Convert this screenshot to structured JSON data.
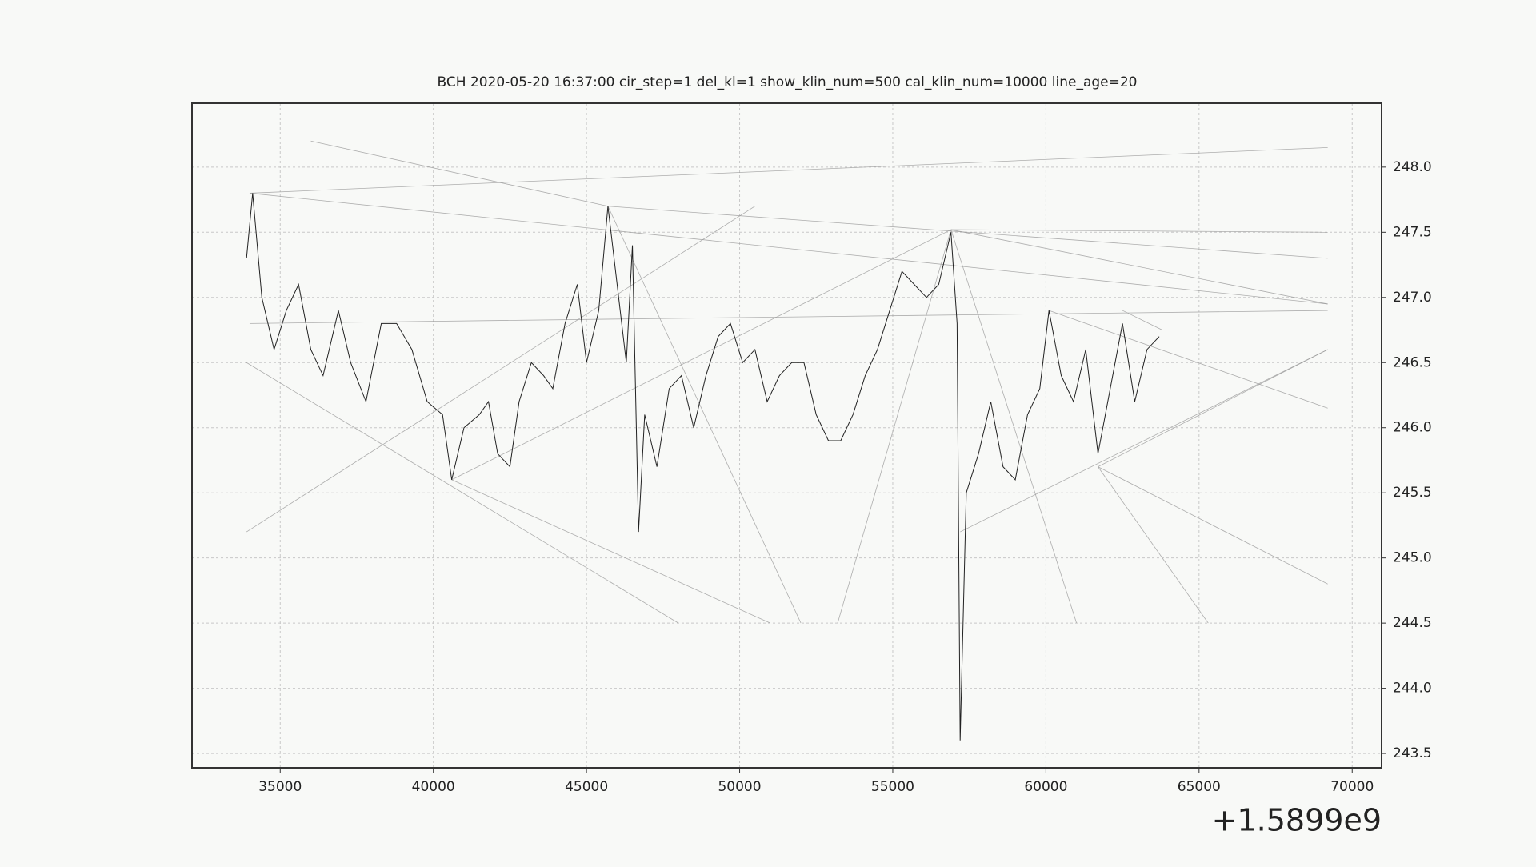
{
  "chart_data": {
    "type": "line",
    "title": "BCH    2020-05-20 16:37:00 cir_step=1 del_kl=1 show_klin_num=500 cal_klin_num=10000 line_age=20",
    "x_offset_label": "+1.5899e9",
    "xlim": [
      32120,
      70960
    ],
    "ylim": [
      243.39,
      248.49
    ],
    "xticks": [
      35000,
      40000,
      45000,
      50000,
      55000,
      60000,
      65000,
      70000
    ],
    "yticks": [
      {
        "value": 243.5,
        "label": "243.5"
      },
      {
        "value": 244.0,
        "label": "244.0"
      },
      {
        "value": 244.5,
        "label": "244.5"
      },
      {
        "value": 245.0,
        "label": "245.0"
      },
      {
        "value": 245.5,
        "label": "245.5"
      },
      {
        "value": 246.0,
        "label": "246.0"
      },
      {
        "value": 246.5,
        "label": "246.5"
      },
      {
        "value": 247.0,
        "label": "247.0"
      },
      {
        "value": 247.5,
        "label": "247.5"
      },
      {
        "value": 248.0,
        "label": "248.0"
      }
    ],
    "grid": true,
    "series": [
      {
        "color": "#222222",
        "x": [
          33900,
          34100,
          34400,
          34800,
          35200,
          35600,
          36000,
          36400,
          36900,
          37300,
          37800,
          38300,
          38800,
          39300,
          39800,
          40300,
          40600,
          41000,
          41500,
          41800,
          42100,
          42500,
          42800,
          43200,
          43600,
          43900,
          44300,
          44700,
          45000,
          45400,
          45700,
          46000,
          46300,
          46500,
          46700,
          46900,
          47300,
          47700,
          48100,
          48500,
          48900,
          49300,
          49700,
          50100,
          50500,
          50900,
          51300,
          51700,
          52100,
          52500,
          52900,
          53300,
          53700,
          54100,
          54500,
          54900,
          55300,
          55700,
          56100,
          56500,
          56900,
          57100,
          57200,
          57400,
          57800,
          58200,
          58600,
          59000,
          59400,
          59800,
          60100,
          60500,
          60900,
          61300,
          61700,
          62100,
          62500,
          62900,
          63300,
          63700
        ],
        "values": [
          247.3,
          247.8,
          247.0,
          246.6,
          246.9,
          247.1,
          246.6,
          246.4,
          246.9,
          246.5,
          246.2,
          246.8,
          246.8,
          246.6,
          246.2,
          246.1,
          245.6,
          246.0,
          246.1,
          246.2,
          245.8,
          245.7,
          246.2,
          246.5,
          246.4,
          246.3,
          246.8,
          247.1,
          246.5,
          246.9,
          247.7,
          247.1,
          246.5,
          247.4,
          245.2,
          246.1,
          245.7,
          246.3,
          246.4,
          246.0,
          246.4,
          246.7,
          246.8,
          246.5,
          246.6,
          246.2,
          246.4,
          246.5,
          246.5,
          246.1,
          245.9,
          245.9,
          246.1,
          246.4,
          246.6,
          246.9,
          247.2,
          247.1,
          247.0,
          247.1,
          247.5,
          246.8,
          243.6,
          245.5,
          245.8,
          246.2,
          245.7,
          245.6,
          246.1,
          246.3,
          246.9,
          246.4,
          246.2,
          246.6,
          245.8,
          246.3,
          246.8,
          246.2,
          246.6,
          246.7
        ]
      }
    ],
    "lines_color": "#9a9a9a",
    "lines": [
      {
        "x": [
          34000,
          69200
        ],
        "y": [
          247.8,
          246.95
        ]
      },
      {
        "x": [
          34000,
          69200
        ],
        "y": [
          247.8,
          248.15
        ]
      },
      {
        "x": [
          45700,
          69200
        ],
        "y": [
          247.7,
          247.3
        ]
      },
      {
        "x": [
          56900,
          69200
        ],
        "y": [
          247.52,
          247.5
        ]
      },
      {
        "x": [
          56900,
          69200
        ],
        "y": [
          247.52,
          246.95
        ]
      },
      {
        "x": [
          40600,
          56900
        ],
        "y": [
          245.6,
          247.52
        ]
      },
      {
        "x": [
          33900,
          48000
        ],
        "y": [
          246.5,
          244.5
        ]
      },
      {
        "x": [
          57200,
          69200
        ],
        "y": [
          245.2,
          246.6
        ]
      },
      {
        "x": [
          61700,
          69200
        ],
        "y": [
          245.7,
          246.6
        ]
      },
      {
        "x": [
          60100,
          69200
        ],
        "y": [
          246.9,
          246.15
        ]
      },
      {
        "x": [
          62500,
          63800
        ],
        "y": [
          246.9,
          246.75
        ]
      },
      {
        "x": [
          34000,
          69200
        ],
        "y": [
          246.8,
          246.9
        ]
      },
      {
        "x": [
          36000,
          45700
        ],
        "y": [
          248.2,
          247.7
        ]
      },
      {
        "x": [
          45700,
          52000
        ],
        "y": [
          247.7,
          244.5
        ]
      },
      {
        "x": [
          33900,
          50500
        ],
        "y": [
          245.2,
          247.7
        ]
      },
      {
        "x": [
          40600,
          51000
        ],
        "y": [
          245.6,
          244.5
        ]
      },
      {
        "x": [
          53200,
          56900
        ],
        "y": [
          244.5,
          247.52
        ]
      },
      {
        "x": [
          56900,
          61000
        ],
        "y": [
          247.52,
          244.5
        ]
      },
      {
        "x": [
          61700,
          65300
        ],
        "y": [
          245.7,
          244.5
        ]
      },
      {
        "x": [
          61700,
          69200
        ],
        "y": [
          245.7,
          244.8
        ]
      }
    ]
  }
}
